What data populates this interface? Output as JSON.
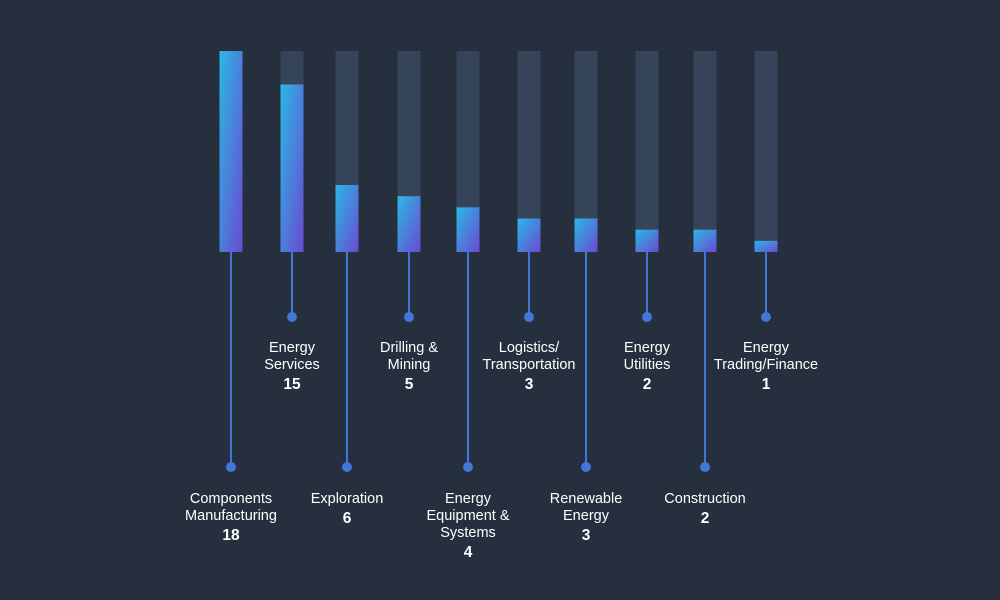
{
  "chart_data": {
    "type": "bar",
    "categories": [
      "Components\nManufacturing",
      "Energy\nServices",
      "Exploration",
      "Drilling &\nMining",
      "Energy\nEquipment &\nSystems",
      "Logistics/\nTransportation",
      "Renewable\nEnergy",
      "Energy\nUtilities",
      "Construction",
      "Energy\nTrading/Finance"
    ],
    "values": [
      18,
      15,
      6,
      5,
      4,
      3,
      3,
      2,
      2,
      1
    ],
    "value_labels": [
      "18",
      "15",
      "6",
      "5",
      "4",
      "3",
      "3",
      "2",
      "2",
      "1"
    ],
    "ylim": [
      0,
      18
    ],
    "grid": false,
    "legend": "none",
    "colors": {
      "background": "#262f3e",
      "track": "#36445a",
      "bar_top": "#2ab8e6",
      "bar_bottom": "#6a4ad0",
      "leader": "#3f78d6",
      "text": "#ffffff"
    }
  }
}
